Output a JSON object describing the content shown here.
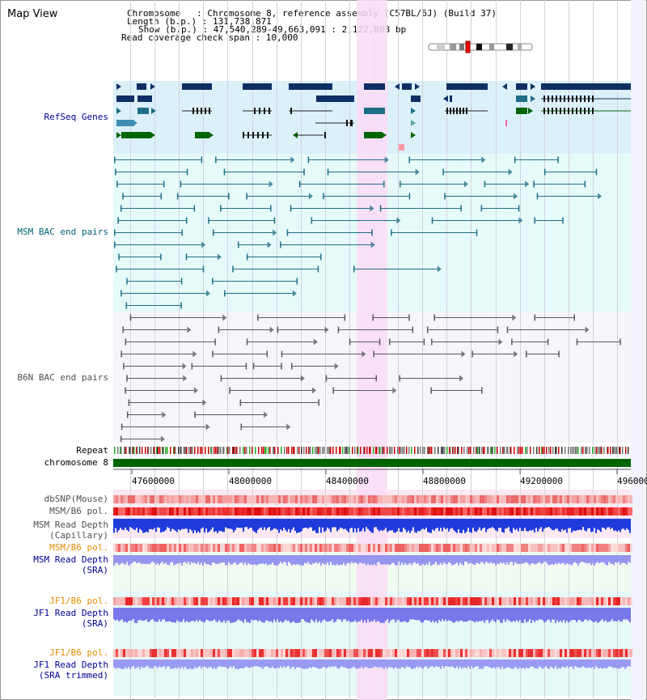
{
  "title": "Map View",
  "info": {
    "chromosome": "Chromosome   : Chromosome 8, reference assembly (C57BL/6J) (Build 37)",
    "length": "Length (b.p.) : 131,738,871",
    "show": "Show (b.p.) : 47,540,289-49,663,091 : 2,122,803 bp",
    "read_coverage": "Read coverage check span : 10,000"
  },
  "tracks": {
    "refseq": "RefSeq Genes",
    "msm_bac": "MSM BAC end pairs",
    "b6n_bac": "B6N BAC end pairs",
    "repeat": "Repeat",
    "chromosome": "chromosome 8",
    "dbsnp": "dbSNP(Mouse)",
    "msm_b6_pol": "MSM/B6 pol.",
    "msm_depth_cap_1": "MSM Read Depth",
    "msm_depth_cap_2": "(Capillary)",
    "msm_b6_pol_2": "MSM/B6 pol.",
    "msm_depth_sra_1": "MSM Read Depth",
    "msm_depth_sra_2": "(SRA)",
    "jf1_pol": "JF1/B6 pol.",
    "jf1_depth_sra_1": "JF1 Read Depth",
    "jf1_depth_sra_2": "(SRA)",
    "jf1_pol_2": "JF1/B6 pol.",
    "jf1_depth_trim_1": "JF1 Read Depth",
    "jf1_depth_trim_2": "(SRA trimmed)"
  },
  "axis_ticks": [
    "47600000",
    "48000000",
    "48400000",
    "48800000",
    "49200000",
    "496000"
  ],
  "colors": {
    "refseq_bg": "#dcf0fa",
    "bac_bg": "#e6fafa",
    "b6n_bg": "#f5f5fa",
    "highlight": "#fadcf5",
    "navy": "#0f2f64",
    "teal": "#1e6e87",
    "green": "#006400",
    "label_blue": "#000096",
    "label_teal": "#006478",
    "label_gray": "#505050",
    "label_orange": "#e68c00"
  }
}
